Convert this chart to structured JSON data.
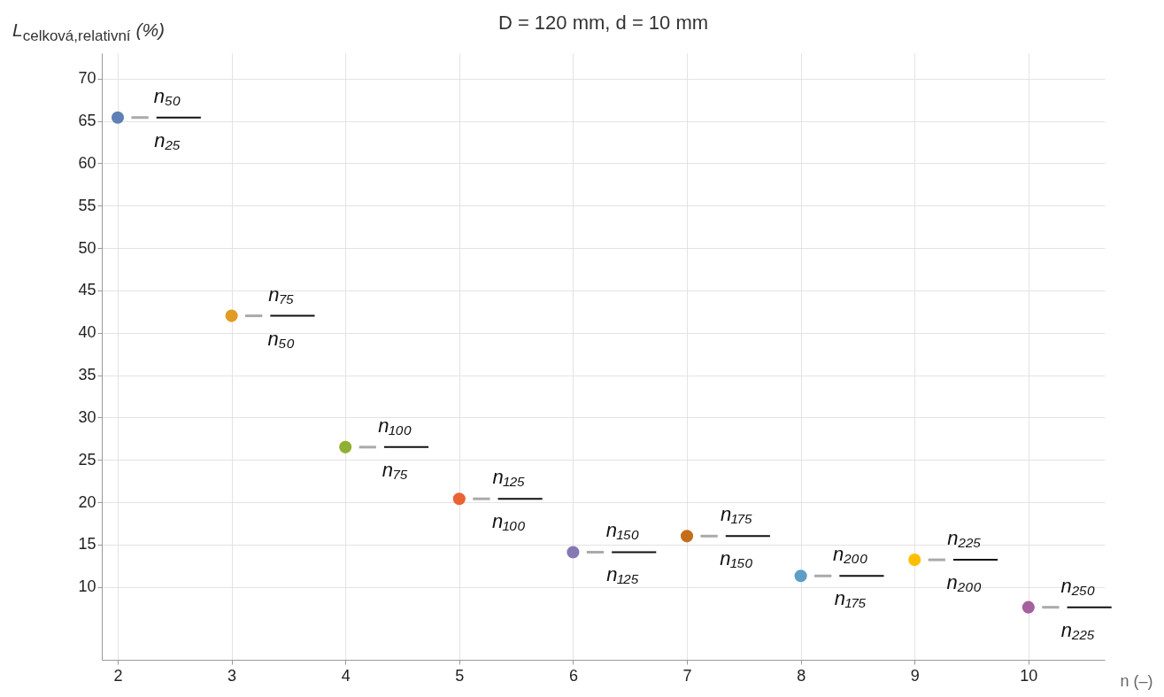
{
  "chart_data": {
    "type": "scatter",
    "title": "D = 120 mm, d = 10 mm",
    "xlabel": "n (–)",
    "ylabel": "L$_{celková,relativní}$ (%)",
    "x": [
      2,
      3,
      4,
      5,
      6,
      7,
      8,
      9,
      10
    ],
    "values": [
      65.4,
      42.0,
      26.5,
      20.4,
      14.1,
      16.0,
      11.3,
      13.2,
      7.6
    ],
    "colors": [
      "#5e81b5",
      "#e19c24",
      "#8fb032",
      "#eb6235",
      "#8778b3",
      "#c56e1a",
      "#5d9ec7",
      "#ffbf00",
      "#a5609d"
    ],
    "xlim": [
      1.86,
      10.67
    ],
    "ylim": [
      1.4,
      73
    ],
    "xticks": [
      2,
      3,
      4,
      5,
      6,
      7,
      8,
      9,
      10
    ],
    "yticks": [
      10,
      15,
      20,
      25,
      30,
      35,
      40,
      45,
      50,
      55,
      60,
      65,
      70
    ],
    "grid": true,
    "marker": "circle",
    "annotations": [
      {
        "text": "n₅₀",
        "x": 2,
        "y": 65.4
      },
      {
        "text": "n₂₅",
        "x": 2,
        "y": 65.4
      },
      {
        "text": "n₇₅",
        "x": 3,
        "y": 42.0
      },
      {
        "text": "n₅₀",
        "x": 3,
        "y": 42.0
      },
      {
        "text": "n₁₀₀",
        "x": 4,
        "y": 26.5
      },
      {
        "text": "n₇₅",
        "x": 4,
        "y": 26.5
      },
      {
        "text": "n₁₂₅",
        "x": 5,
        "y": 20.4
      },
      {
        "text": "n₁₀₀",
        "x": 5,
        "y": 20.4
      },
      {
        "text": "n₁₅₀",
        "x": 6,
        "y": 14.1
      },
      {
        "text": "n₁₂₅",
        "x": 6,
        "y": 14.1
      },
      {
        "text": "n₁₇₅",
        "x": 7,
        "y": 16.0
      },
      {
        "text": "n₁₅₀",
        "x": 7,
        "y": 16.0
      },
      {
        "text": "n₂₀₀",
        "x": 8,
        "y": 11.3
      },
      {
        "text": "n₁₇₅",
        "x": 8,
        "y": 11.3
      },
      {
        "text": "n₂₂₅",
        "x": 9,
        "y": 13.2
      },
      {
        "text": "n₂₀₀",
        "x": 9,
        "y": 13.2
      },
      {
        "text": "n₂₅₀",
        "x": 10,
        "y": 7.6
      },
      {
        "text": "n₂₂₅",
        "x": 10,
        "y": 7.6
      }
    ]
  }
}
